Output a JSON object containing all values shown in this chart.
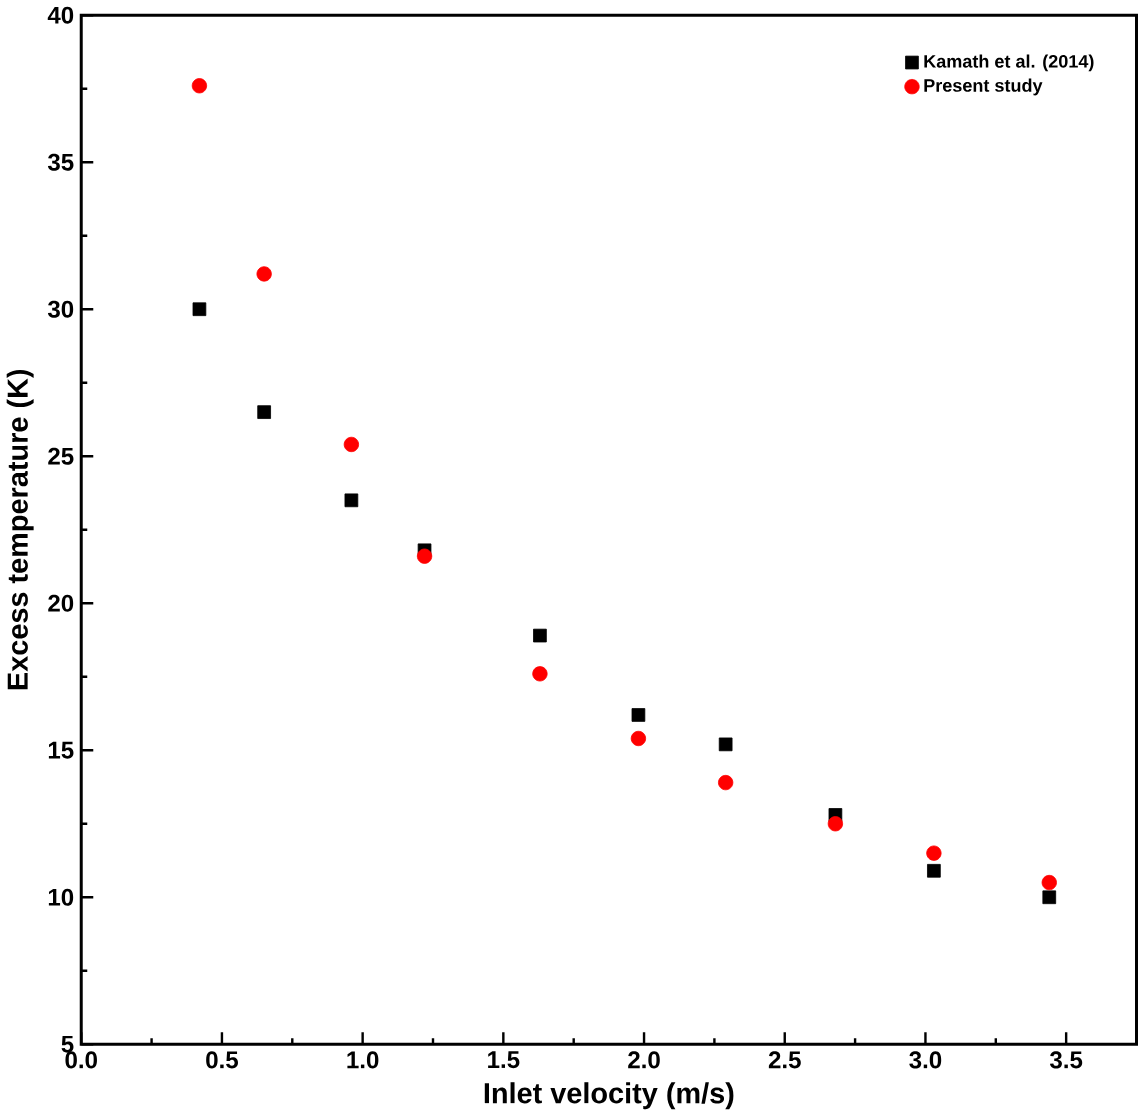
{
  "chart_data": {
    "type": "scatter",
    "xlabel": "Inlet velocity (m/s)",
    "ylabel": "Excess temperature (K)",
    "x": [
      0.42,
      0.65,
      0.96,
      1.22,
      1.63,
      1.98,
      2.29,
      2.68,
      3.03,
      3.44
    ],
    "series": [
      {
        "name": "Kamath et al. (2014)",
        "color": "#000000",
        "marker": "square",
        "values": [
          30.0,
          26.5,
          23.5,
          21.8,
          18.9,
          16.2,
          15.2,
          12.8,
          10.9,
          10.0
        ]
      },
      {
        "name": "Present study",
        "color": "#ff0000",
        "marker": "circle",
        "values": [
          37.6,
          31.2,
          25.4,
          21.6,
          17.6,
          15.4,
          13.9,
          12.5,
          11.5,
          10.5
        ]
      }
    ],
    "xlim": [
      0,
      3.75
    ],
    "xticks": [
      {
        "value": 0,
        "label": "0.0"
      },
      0.5,
      {
        "value": 1,
        "label": "1.0"
      },
      1.5,
      {
        "value": 2,
        "label": "2.0"
      },
      2.5,
      {
        "value": 3,
        "label": "3.0"
      },
      3.5
    ],
    "ylim": [
      5,
      40
    ],
    "yticks": [
      5,
      10,
      15,
      20,
      25,
      30,
      35,
      40
    ],
    "grid": false,
    "legend": "top right"
  }
}
